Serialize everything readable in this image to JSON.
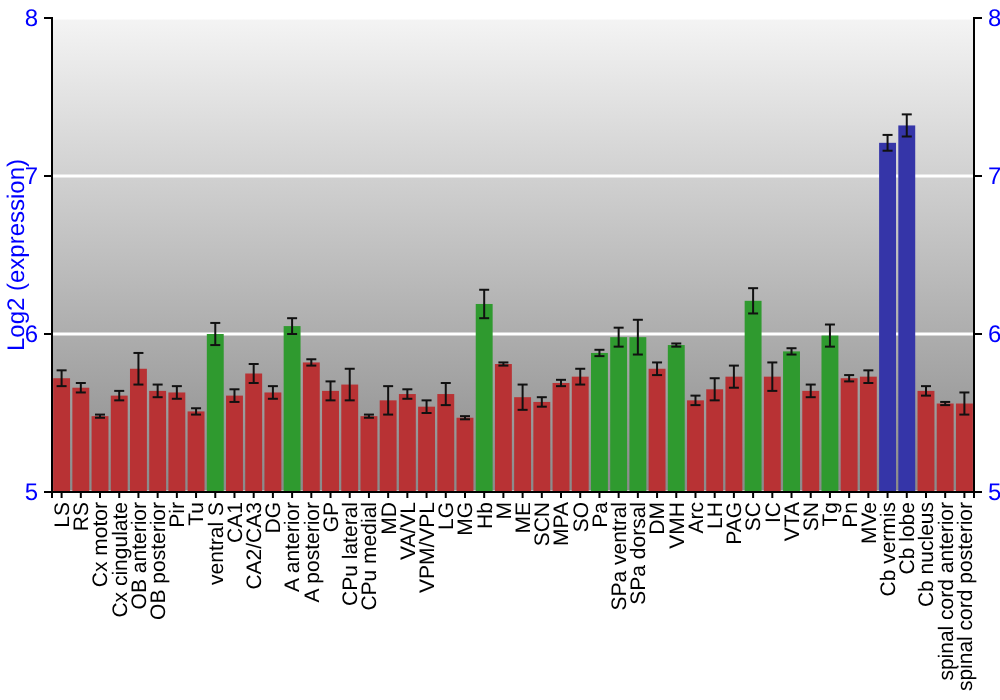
{
  "chart_data": {
    "type": "bar",
    "ylabel": "Log2 (expression)",
    "categories": [
      "LS",
      "RS",
      "Cx motor",
      "Cx cingulate",
      "OB anterior",
      "OB posterior",
      "Pir",
      "Tu",
      "ventral S",
      "CA1",
      "CA2/CA3",
      "DG",
      "A anterior",
      "A posterior",
      "GP",
      "CPu lateral",
      "CPu medial",
      "MD",
      "VA/VL",
      "VPM/VPL",
      "LG",
      "MG",
      "Hb",
      "M",
      "ME",
      "SCN",
      "MPA",
      "SO",
      "Pa",
      "SPa ventral",
      "SPa dorsal",
      "DM",
      "VMH",
      "Arc",
      "LH",
      "PAG",
      "SC",
      "IC",
      "VTA",
      "SN",
      "Tg",
      "Pn",
      "MVe",
      "Cb vermis",
      "Cb lobe",
      "Cb nucleus",
      "spinal cord anterior",
      "spinal cord posterior"
    ],
    "values": [
      5.72,
      5.66,
      5.48,
      5.61,
      5.78,
      5.64,
      5.63,
      5.51,
      6.0,
      5.61,
      5.75,
      5.63,
      6.05,
      5.82,
      5.64,
      5.68,
      5.48,
      5.58,
      5.62,
      5.54,
      5.62,
      5.47,
      6.19,
      5.81,
      5.6,
      5.57,
      5.69,
      5.73,
      5.88,
      5.98,
      5.98,
      5.78,
      5.93,
      5.58,
      5.65,
      5.73,
      6.21,
      5.73,
      5.89,
      5.64,
      5.99,
      5.72,
      5.73,
      7.21,
      7.32,
      5.64,
      5.56,
      5.56
    ],
    "errors": [
      0.05,
      0.03,
      0.01,
      0.03,
      0.1,
      0.04,
      0.04,
      0.02,
      0.07,
      0.04,
      0.06,
      0.04,
      0.05,
      0.02,
      0.06,
      0.1,
      0.01,
      0.09,
      0.03,
      0.04,
      0.07,
      0.01,
      0.09,
      0.01,
      0.08,
      0.03,
      0.02,
      0.05,
      0.02,
      0.06,
      0.11,
      0.04,
      0.01,
      0.03,
      0.07,
      0.07,
      0.08,
      0.09,
      0.02,
      0.04,
      0.07,
      0.02,
      0.04,
      0.05,
      0.07,
      0.03,
      0.01,
      0.07
    ],
    "colors": [
      "#b83234",
      "#b83234",
      "#b83234",
      "#b83234",
      "#b83234",
      "#b83234",
      "#b83234",
      "#b83234",
      "#2f9a2f",
      "#b83234",
      "#b83234",
      "#b83234",
      "#2f9a2f",
      "#b83234",
      "#b83234",
      "#b83234",
      "#b83234",
      "#b83234",
      "#b83234",
      "#b83234",
      "#b83234",
      "#b83234",
      "#2f9a2f",
      "#b83234",
      "#b83234",
      "#b83234",
      "#b83234",
      "#b83234",
      "#2f9a2f",
      "#2f9a2f",
      "#2f9a2f",
      "#b83234",
      "#2f9a2f",
      "#b83234",
      "#b83234",
      "#b83234",
      "#2f9a2f",
      "#b83234",
      "#2f9a2f",
      "#b83234",
      "#2f9a2f",
      "#b83234",
      "#b83234",
      "#3535a8",
      "#3535a8",
      "#b83234",
      "#b83234",
      "#b83234"
    ],
    "ylim": [
      5,
      8
    ],
    "yticks": [
      5,
      6,
      7,
      8
    ],
    "y2lim": [
      5,
      8
    ],
    "y2ticks": [
      5,
      6,
      7,
      8
    ],
    "grid": "y"
  }
}
